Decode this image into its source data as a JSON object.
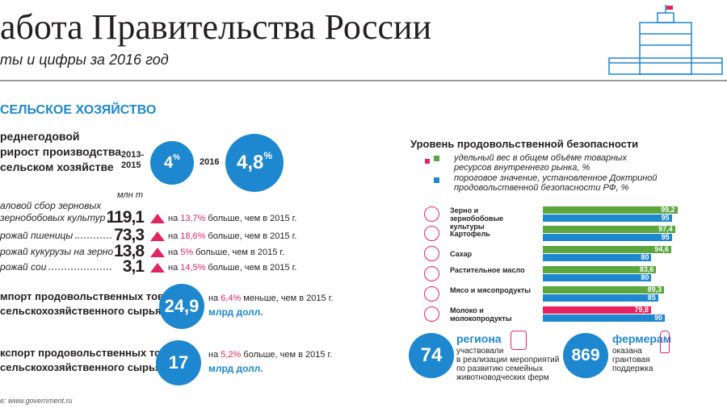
{
  "header": {
    "title": "абота Правительства России",
    "subtitle": "ты и цифры за 2016 год"
  },
  "section_title": "СЕЛЬСКОЕ ХОЗЯЙСТВО",
  "growth": {
    "label": [
      "реднегодовой",
      "рирост производства",
      "сельском хозяйстве"
    ],
    "periods": [
      {
        "period": [
          "2013-",
          "2015"
        ],
        "value": "4",
        "unit": "%"
      },
      {
        "period": [
          "2016"
        ],
        "value": "4,8",
        "unit": "%"
      }
    ]
  },
  "harvest": {
    "unit": "млн т",
    "rows": [
      {
        "label": [
          "аловой сбор зерновых",
          "зернобобовых культур"
        ],
        "value": "119,1",
        "prefix": "на",
        "change": "13,7%",
        "suffix": "больше, чем в 2015 г."
      },
      {
        "label": [
          "рожай пшеницы"
        ],
        "value": "73,3",
        "prefix": "на",
        "change": "18,6%",
        "suffix": "больше, чем в 2015 г."
      },
      {
        "label": [
          "рожай кукурузы на зерно"
        ],
        "value": "13,8",
        "prefix": "на",
        "change": "5%",
        "suffix": "больше, чем в 2015 г."
      },
      {
        "label": [
          "рожай сои"
        ],
        "value": "3,1",
        "prefix": "на",
        "change": "14,5%",
        "suffix": "больше, чем в 2015 г."
      }
    ]
  },
  "trade": [
    {
      "label": [
        "мпорт продовольственных товаров",
        "сельскохозяйственного сырья"
      ],
      "value": "24,9",
      "prefix": "на",
      "change": "6,4%",
      "suffix": "меньше, чем в 2015 г.",
      "unit": "млрд долл."
    },
    {
      "label": [
        "кспорт продовольственных товаров",
        "сельскохозяйственного сырья"
      ],
      "value": "17",
      "prefix": "на",
      "change": "5,2%",
      "suffix": "больше, чем в 2015 г.",
      "unit": "млрд долл."
    }
  ],
  "chart_data": {
    "type": "bar",
    "orientation": "horizontal",
    "title": "Уровень продовольственной безопасности",
    "categories": [
      "Зерно и зернобобовые культуры",
      "Картофель",
      "Сахар",
      "Растительное масло",
      "Мясо и мясопродукты",
      "Молоко и молокопродукты"
    ],
    "series": [
      {
        "name": "удельный вес в общем объёме товарных ресурсов внутреннего рынка, %",
        "color": "#5ba63e",
        "colors": [
          "#5ba63e",
          "#5ba63e",
          "#5ba63e",
          "#5ba63e",
          "#5ba63e",
          "#e5245f"
        ],
        "values": [
          99.2,
          97.4,
          94.6,
          83.6,
          89.3,
          79.8
        ],
        "value_labels": [
          "99,2",
          "97,4",
          "94,6",
          "83,6",
          "89,3",
          "79,8"
        ]
      },
      {
        "name": "пороговое значение, установленное Доктриной продовольственной безопасности РФ, %",
        "color": "#1d87cf",
        "values": [
          95,
          95,
          80,
          80,
          85,
          90
        ]
      }
    ]
  },
  "regions": {
    "value": "74",
    "title": "региона",
    "text": [
      "участвовали",
      "в реализации мероприятий",
      "по развитию семейных",
      "животноводческих ферм"
    ]
  },
  "farmers": {
    "value": "869",
    "title": "фермерам",
    "text": [
      "оказана",
      "грантовая",
      "поддержка"
    ]
  },
  "source": "е: www.government.ru"
}
